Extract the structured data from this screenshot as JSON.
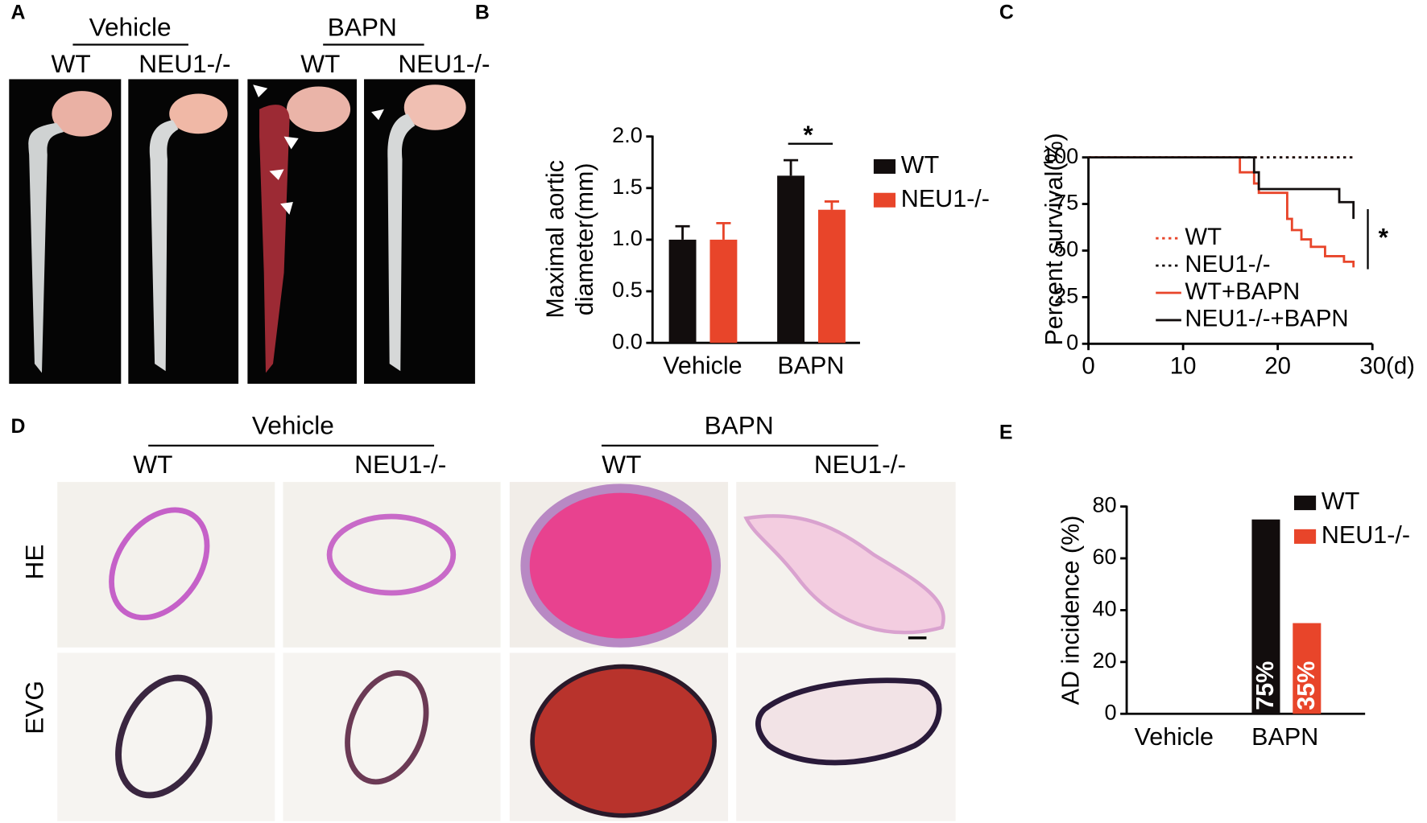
{
  "panel_a": {
    "label": "A",
    "groups": [
      "Vehicle",
      "BAPN"
    ],
    "genotypes": [
      "WT",
      "NEU1-/-",
      "WT",
      "NEU1-/-"
    ]
  },
  "panel_d": {
    "label": "D",
    "groups": [
      "Vehicle",
      "BAPN"
    ],
    "genotypes": [
      "WT",
      "NEU1-/-",
      "WT",
      "NEU1-/-"
    ],
    "stains": [
      "HE",
      "EVG"
    ]
  },
  "chart_data": [
    {
      "type": "bar",
      "panel": "B",
      "ylabel": [
        "Maximal aortic",
        "diameter(mm)"
      ],
      "categories": [
        "Vehicle",
        "BAPN"
      ],
      "series": [
        {
          "name": "WT",
          "color": "#120d0d",
          "values": [
            1.0,
            1.62
          ],
          "errors": [
            0.13,
            0.15
          ]
        },
        {
          "name": "NEU1-/-",
          "color": "#e8452a",
          "values": [
            1.0,
            1.29
          ],
          "errors": [
            0.16,
            0.08
          ]
        }
      ],
      "ylim": [
        0,
        2.0
      ],
      "yticks": [
        {
          "value": 0,
          "label": "0.0"
        },
        {
          "value": 0.5,
          "label": "0.5"
        },
        {
          "value": 1.0,
          "label": "1.0"
        },
        {
          "value": 1.5,
          "label": "1.5"
        },
        {
          "value": 2.0,
          "label": "2.0"
        }
      ],
      "annotations": [
        "*"
      ]
    },
    {
      "type": "line",
      "panel": "C",
      "ylabel": "Percent survival(%)",
      "series": [
        {
          "name": "WT",
          "color": "#e8452a",
          "linestyle": "dotted",
          "x": [
            0,
            28
          ],
          "values": [
            100,
            100
          ]
        },
        {
          "name": "NEU1-/-",
          "color": "#120d0d",
          "linestyle": "dotted",
          "x": [
            0,
            28
          ],
          "values": [
            100,
            100
          ]
        },
        {
          "name": "WT+BAPN",
          "color": "#e8452a",
          "linestyle": "solid",
          "x": [
            0,
            16,
            16,
            17.5,
            17.5,
            18,
            18,
            21,
            21,
            21.5,
            21.5,
            22.5,
            22.5,
            23.5,
            23.5,
            25,
            25,
            27,
            27,
            28,
            28
          ],
          "values": [
            100,
            100,
            92,
            92,
            86,
            86,
            81,
            81,
            67,
            67,
            61,
            61,
            56,
            56,
            52,
            52,
            47,
            47,
            44,
            44,
            41
          ]
        },
        {
          "name": "NEU1-/-+BAPN",
          "color": "#120d0d",
          "linestyle": "solid",
          "x": [
            0,
            17.5,
            17.5,
            18,
            18,
            26.5,
            26.5,
            28,
            28
          ],
          "values": [
            100,
            100,
            92,
            92,
            83,
            83,
            76,
            76,
            67
          ]
        }
      ],
      "xlim": [
        0,
        30
      ],
      "xticks": [
        0,
        10,
        20,
        {
          "value": 30,
          "label": "30(d)"
        }
      ],
      "ylim": [
        0,
        100
      ],
      "yticks": [
        0,
        25,
        50,
        75,
        100
      ],
      "annotations": [
        "*"
      ]
    },
    {
      "type": "bar",
      "panel": "E",
      "ylabel": "AD incidence (%)",
      "categories": [
        "Vehicle",
        "BAPN"
      ],
      "series": [
        {
          "name": "WT",
          "color": "#120d0d",
          "values": [
            0,
            75
          ],
          "value_labels": [
            null,
            "75%"
          ]
        },
        {
          "name": "NEU1-/-",
          "color": "#e8452a",
          "values": [
            0,
            35
          ],
          "value_labels": [
            null,
            "35%"
          ]
        }
      ],
      "ylim": [
        0,
        80
      ],
      "yticks": [
        0,
        20,
        40,
        60,
        80
      ]
    }
  ]
}
